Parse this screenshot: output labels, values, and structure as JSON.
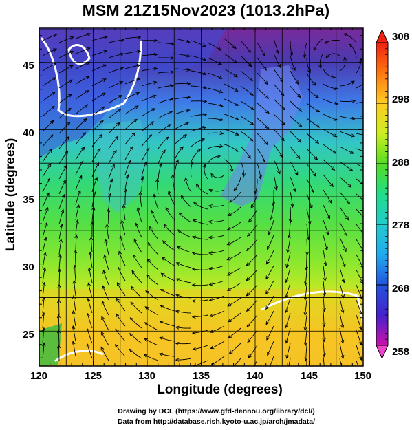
{
  "title": "MSM 21Z15Nov2023 (1013.2hPa)",
  "x_axis": {
    "label": "Longitude (degrees)",
    "ticks": [
      "120",
      "125",
      "130",
      "135",
      "140",
      "145",
      "150"
    ]
  },
  "y_axis": {
    "label": "Latitude  (degrees)",
    "ticks": [
      "25",
      "30",
      "35",
      "40",
      "45"
    ]
  },
  "colorbar": {
    "ticks": [
      "308",
      "298",
      "288",
      "278",
      "268",
      "258"
    ],
    "min": 258,
    "max": 308,
    "colors": [
      "#cc11aa",
      "#5511cc",
      "#2233dd",
      "#3377ee",
      "#22bbee",
      "#22ddbb",
      "#33dd55",
      "#88ee33",
      "#ccee22",
      "#ffdd22",
      "#ffaa22",
      "#ff6611",
      "#ee2211"
    ]
  },
  "credits": {
    "line1": "Drawing by DCL (https://www.gfd-dennou.org/library/dcl/)",
    "line2": "Data from http://database.rish.kyoto-u.ac.jp/arch/jmadata/"
  },
  "map_extent": {
    "lon": [
      120,
      150
    ],
    "lat": [
      22.4,
      47.6
    ]
  }
}
